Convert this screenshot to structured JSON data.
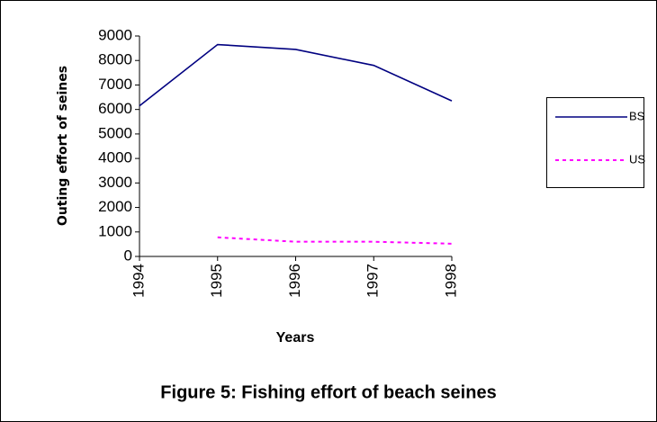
{
  "chart_data": {
    "type": "line",
    "title": "Figure 5: Fishing effort of beach seines",
    "xlabel": "Years",
    "ylabel": "Outing effort of seines",
    "x": [
      1994,
      1995,
      1996,
      1997,
      1998
    ],
    "xlim": [
      1994,
      1998
    ],
    "xticks": [
      1994,
      1995,
      1996,
      1997,
      1998
    ],
    "ylim": [
      0,
      9000
    ],
    "yticks": [
      0,
      1000,
      2000,
      3000,
      4000,
      5000,
      6000,
      7000,
      8000,
      9000
    ],
    "legend": "right",
    "series": [
      {
        "name": "BS",
        "color": "#000080",
        "dash": false,
        "values": [
          6150,
          8650,
          8450,
          7800,
          6350
        ]
      },
      {
        "name": "US",
        "color": "#ff00ff",
        "dash": true,
        "values": [
          null,
          780,
          600,
          600,
          520
        ]
      }
    ]
  }
}
